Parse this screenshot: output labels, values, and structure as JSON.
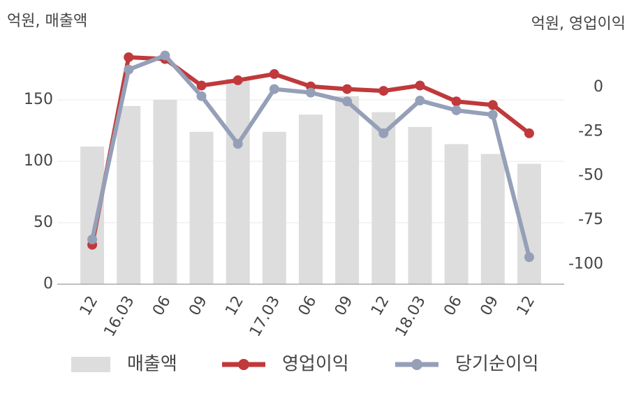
{
  "chart_data": {
    "type": "bar-line",
    "y_unit_label": "억원, 매출액",
    "y2_unit_label": "억원, 영업이익",
    "categories": [
      "12",
      "16.03",
      "06",
      "09",
      "12",
      "17.03",
      "06",
      "09",
      "12",
      "18.03",
      "06",
      "09",
      "12"
    ],
    "series": [
      {
        "name": "매출액",
        "type": "bar",
        "color": "#dddddd",
        "values": [
          112,
          145,
          150,
          124,
          167,
          124,
          138,
          153,
          140,
          128,
          114,
          106,
          98
        ]
      },
      {
        "name": "영업이익",
        "type": "line",
        "axis": "y2",
        "color": "#c0393b",
        "values": [
          -89,
          17,
          16,
          1,
          4,
          7.5,
          0.5,
          -1,
          -2,
          1,
          -8,
          -10,
          -26
        ]
      },
      {
        "name": "당기순이익",
        "type": "line",
        "axis": "y2",
        "color": "#95a0b8",
        "values": [
          -86,
          10,
          18,
          -5,
          -32,
          -1,
          -3,
          -8,
          -26,
          -7.5,
          -13,
          -15.5,
          -96
        ]
      }
    ],
    "ylim": [
      0,
      190
    ],
    "yticks": [
      0,
      50,
      100,
      150
    ],
    "y2lim": [
      -111.3,
      20.7
    ],
    "y2ticks": [
      0,
      -25,
      -50,
      -75,
      -100
    ],
    "grid": true
  }
}
